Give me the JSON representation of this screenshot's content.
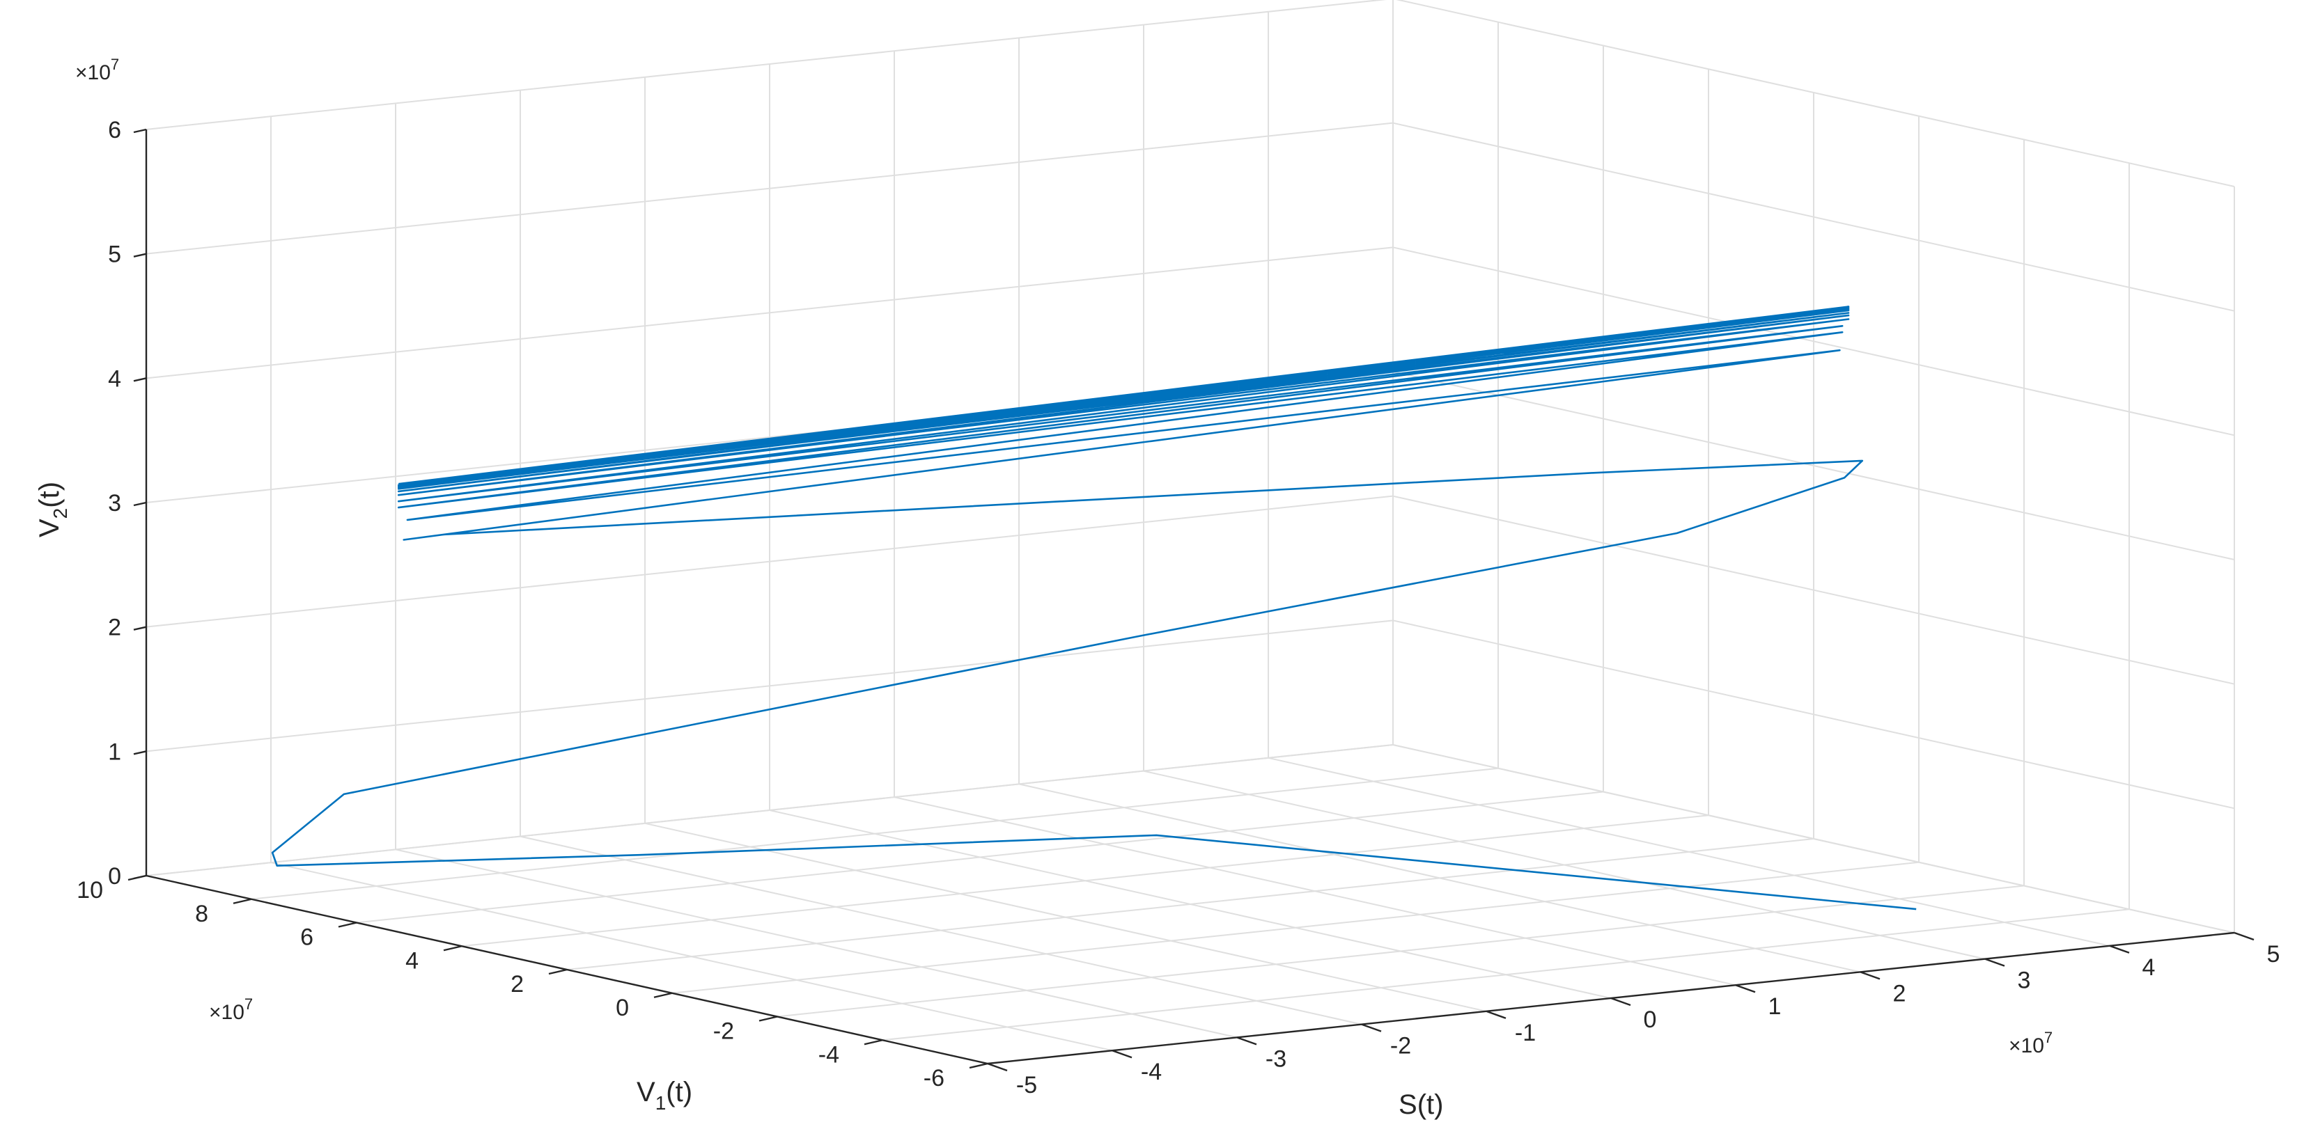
{
  "chart_data": {
    "type": "line",
    "dimensions": 3,
    "view": "3d",
    "grid": true,
    "color": "#0072bd",
    "axes": {
      "x": {
        "label_main": "S",
        "label_tail": "(t)",
        "min": -5,
        "max": 5,
        "ticks": [
          "-5",
          "-4",
          "-3",
          "-2",
          "-1",
          "0",
          "1",
          "2",
          "3",
          "4",
          "5"
        ],
        "exponent_base": "×10",
        "exponent_power": "7"
      },
      "y": {
        "label_main": "V",
        "label_sub": "1",
        "label_tail": "(t)",
        "min": -6,
        "max": 10,
        "ticks": [
          "-6",
          "-4",
          "-2",
          "0",
          "2",
          "4",
          "6",
          "8",
          "10"
        ],
        "exponent_base": "×10",
        "exponent_power": "7"
      },
      "z": {
        "label_main": "V",
        "label_sub": "2",
        "label_tail": "(t)",
        "min": 0,
        "max": 6,
        "ticks": [
          "0",
          "1",
          "2",
          "3",
          "4",
          "5",
          "6"
        ],
        "exponent_base": "×10",
        "exponent_power": "7"
      }
    },
    "trajectory": {
      "units_note": "values in units of 1e7",
      "points": [
        [
          3.84,
          -2.7,
          0.0
        ],
        [
          1.5,
          6.2,
          0.0
        ],
        [
          -1.8,
          8.2,
          0.0
        ],
        [
          -4.5,
          8.7,
          0.15
        ],
        [
          -4.6,
          8.55,
          0.28
        ],
        [
          -4.3,
          7.9,
          0.78
        ],
        [
          -2.7,
          5.0,
          1.45
        ],
        [
          -0.4,
          2.0,
          2.2
        ],
        [
          2.3,
          -1.8,
          3.1
        ],
        [
          3.2,
          -2.85,
          3.55
        ],
        [
          3.26,
          -3.05,
          3.7
        ],
        [
          1.8,
          -1.4,
          3.6
        ],
        [
          -4.0,
          6.7,
          2.95
        ],
        [
          -4.2,
          7.0,
          2.9
        ],
        [
          3.1,
          -3.0,
          4.6
        ],
        [
          -4.15,
          7.05,
          3.05
        ],
        [
          3.1,
          -3.05,
          4.75
        ],
        [
          -4.2,
          7.1,
          3.15
        ],
        [
          3.1,
          -3.05,
          4.8
        ],
        [
          -4.2,
          7.1,
          3.2
        ],
        [
          3.15,
          -3.05,
          4.85
        ],
        [
          -4.2,
          7.1,
          3.25
        ],
        [
          3.15,
          -3.05,
          4.88
        ],
        [
          -4.2,
          7.1,
          3.28
        ],
        [
          3.15,
          -3.05,
          4.9
        ],
        [
          -4.2,
          7.1,
          3.3
        ],
        [
          3.15,
          -3.05,
          4.92
        ],
        [
          -4.2,
          7.1,
          3.31
        ],
        [
          3.15,
          -3.05,
          4.93
        ],
        [
          -4.2,
          7.1,
          3.32
        ],
        [
          3.15,
          -3.05,
          4.94
        ],
        [
          -4.2,
          7.1,
          3.33
        ],
        [
          3.15,
          -3.05,
          4.95
        ],
        [
          -4.2,
          7.1,
          3.34
        ]
      ]
    }
  }
}
